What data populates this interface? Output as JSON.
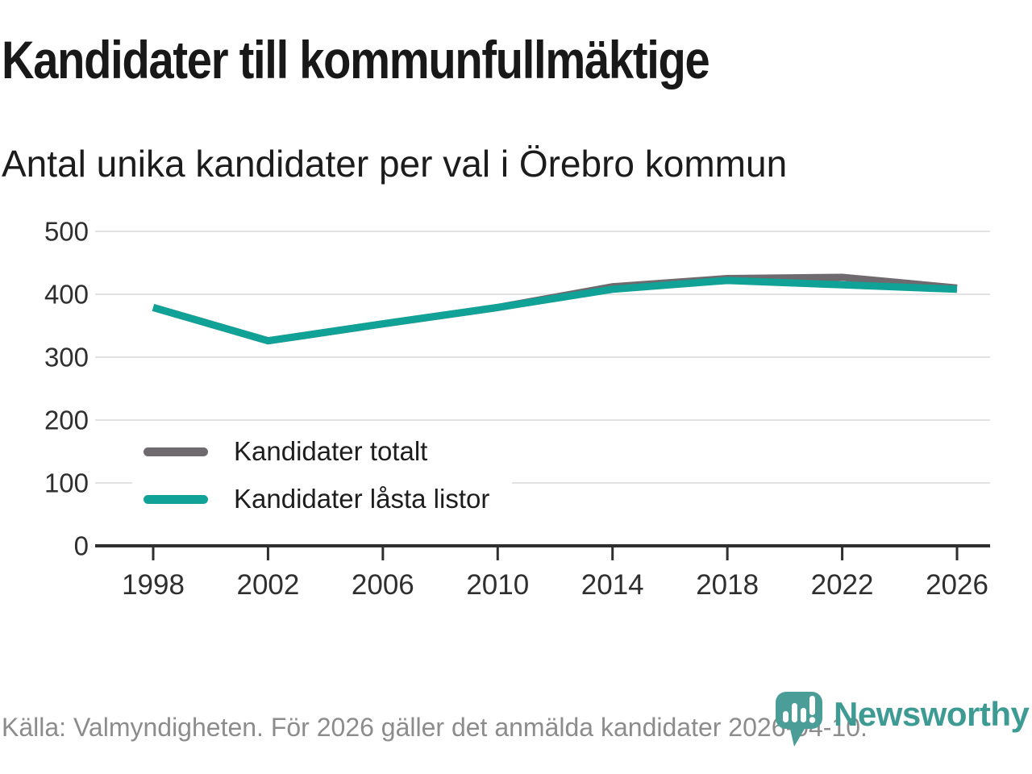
{
  "header": {
    "title": "Kandidater till kommunfullmäktige",
    "subtitle": "Antal unika kandidater per val i Örebro kommun"
  },
  "chart_data": {
    "type": "line",
    "title": "Kandidater till kommunfullmäktige",
    "subtitle": "Antal unika kandidater per val i Örebro kommun",
    "categories": [
      "1998",
      "2002",
      "2006",
      "2010",
      "2014",
      "2018",
      "2022",
      "2026"
    ],
    "series": [
      {
        "name": "Kandidater totalt",
        "color": "#6E6A6E",
        "values": [
          379,
          326,
          353,
          379,
          412,
          425,
          427,
          410
        ]
      },
      {
        "name": "Kandidater låsta listor",
        "color": "#10A296",
        "values": [
          379,
          326,
          353,
          379,
          408,
          422,
          415,
          408
        ]
      }
    ],
    "xlabel": "",
    "ylabel": "",
    "ylim": [
      0,
      500
    ],
    "yticks": [
      0,
      100,
      200,
      300,
      400,
      500
    ],
    "grid": "horizontal",
    "legend_position": "inside-bottom-left"
  },
  "footer": {
    "source": "Källa: Valmyndigheten. För 2026 gäller det anmälda kandidater 2026-04-10.",
    "brand": "Newsworthy"
  },
  "colors": {
    "series_gray": "#6E6A6E",
    "series_teal": "#10A296",
    "grid": "#E2E2E2",
    "axis": "#2F2F2F",
    "tick_text": "#2F2F2F",
    "footer_text": "#8C8C8C",
    "logo_teal": "#4A9E97",
    "brand_text_teal": "#3D9B94"
  },
  "icons": {
    "logo": "newsworthy-pin-barchart-icon"
  }
}
